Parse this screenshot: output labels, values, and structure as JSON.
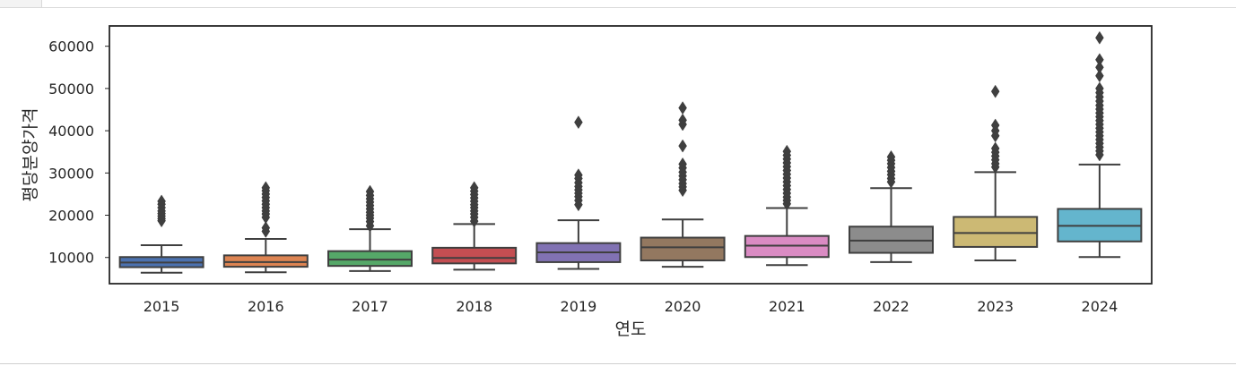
{
  "chart_data": {
    "type": "box",
    "xlabel": "연도",
    "ylabel": "평당분양가격",
    "ylim": [
      3800,
      64800
    ],
    "yticks": [
      10000,
      20000,
      30000,
      40000,
      50000,
      60000
    ],
    "grid": false,
    "categories": [
      "2015",
      "2016",
      "2017",
      "2018",
      "2019",
      "2020",
      "2021",
      "2022",
      "2023",
      "2024"
    ],
    "colors": [
      "#4c72b0",
      "#dd8452",
      "#55a868",
      "#c44e52",
      "#8172b3",
      "#937860",
      "#da8bc3",
      "#8c8c8c",
      "#ccb974",
      "#64b5cd"
    ],
    "boxes": [
      {
        "whislo": 6400,
        "q1": 7700,
        "med": 8800,
        "q3": 10100,
        "whishi": 12900,
        "fliers": [
          18700,
          19200,
          19800,
          20400,
          21000,
          21800,
          22600,
          23300
        ]
      },
      {
        "whislo": 6500,
        "q1": 7800,
        "med": 8900,
        "q3": 10500,
        "whishi": 14400,
        "fliers": [
          16200,
          17000,
          19500,
          20300,
          21000,
          21800,
          22600,
          23400,
          24200,
          25000,
          25800,
          26500
        ]
      },
      {
        "whislo": 6800,
        "q1": 8000,
        "med": 9500,
        "q3": 11500,
        "whishi": 16700,
        "fliers": [
          17500,
          18500,
          19300,
          20000,
          20700,
          21500,
          22300,
          23100,
          23900,
          24700,
          25600
        ]
      },
      {
        "whislo": 7100,
        "q1": 8600,
        "med": 9900,
        "q3": 12300,
        "whishi": 17900,
        "fliers": [
          18600,
          19500,
          20300,
          21000,
          21800,
          22500,
          23300,
          24100,
          24900,
          25700,
          26500
        ]
      },
      {
        "whislo": 7300,
        "q1": 8900,
        "med": 11200,
        "q3": 13400,
        "whishi": 18800,
        "fliers": [
          22500,
          23500,
          24400,
          25200,
          26000,
          26800,
          27700,
          28700,
          29500,
          42000
        ]
      },
      {
        "whislo": 7800,
        "q1": 9300,
        "med": 12400,
        "q3": 14700,
        "whishi": 19000,
        "fliers": [
          25900,
          26700,
          27500,
          28400,
          29300,
          30200,
          31200,
          32100,
          36400,
          41500,
          42500,
          45400
        ]
      },
      {
        "whislo": 8200,
        "q1": 10100,
        "med": 12800,
        "q3": 15100,
        "whishi": 21700,
        "fliers": [
          22700,
          23500,
          24300,
          25200,
          26100,
          27000,
          27900,
          28800,
          29700,
          30600,
          31500,
          32400,
          33300,
          34200,
          35100
        ]
      },
      {
        "whislo": 8900,
        "q1": 11100,
        "med": 14000,
        "q3": 17300,
        "whishi": 26400,
        "fliers": [
          27900,
          28700,
          29600,
          30400,
          31300,
          32200,
          33000,
          33800
        ]
      },
      {
        "whislo": 9300,
        "q1": 12500,
        "med": 15800,
        "q3": 19600,
        "whishi": 30200,
        "fliers": [
          31400,
          32200,
          33100,
          34000,
          34900,
          35800,
          38800,
          40000,
          41300,
          49300
        ]
      },
      {
        "whislo": 10100,
        "q1": 13800,
        "med": 17500,
        "q3": 21500,
        "whishi": 32000,
        "fliers": [
          34300,
          35200,
          36100,
          37000,
          37900,
          38800,
          39700,
          40600,
          41500,
          42400,
          43300,
          44200,
          45100,
          46000,
          47000,
          48000,
          49000,
          50000,
          53000,
          55000,
          56800,
          62000
        ]
      }
    ]
  }
}
